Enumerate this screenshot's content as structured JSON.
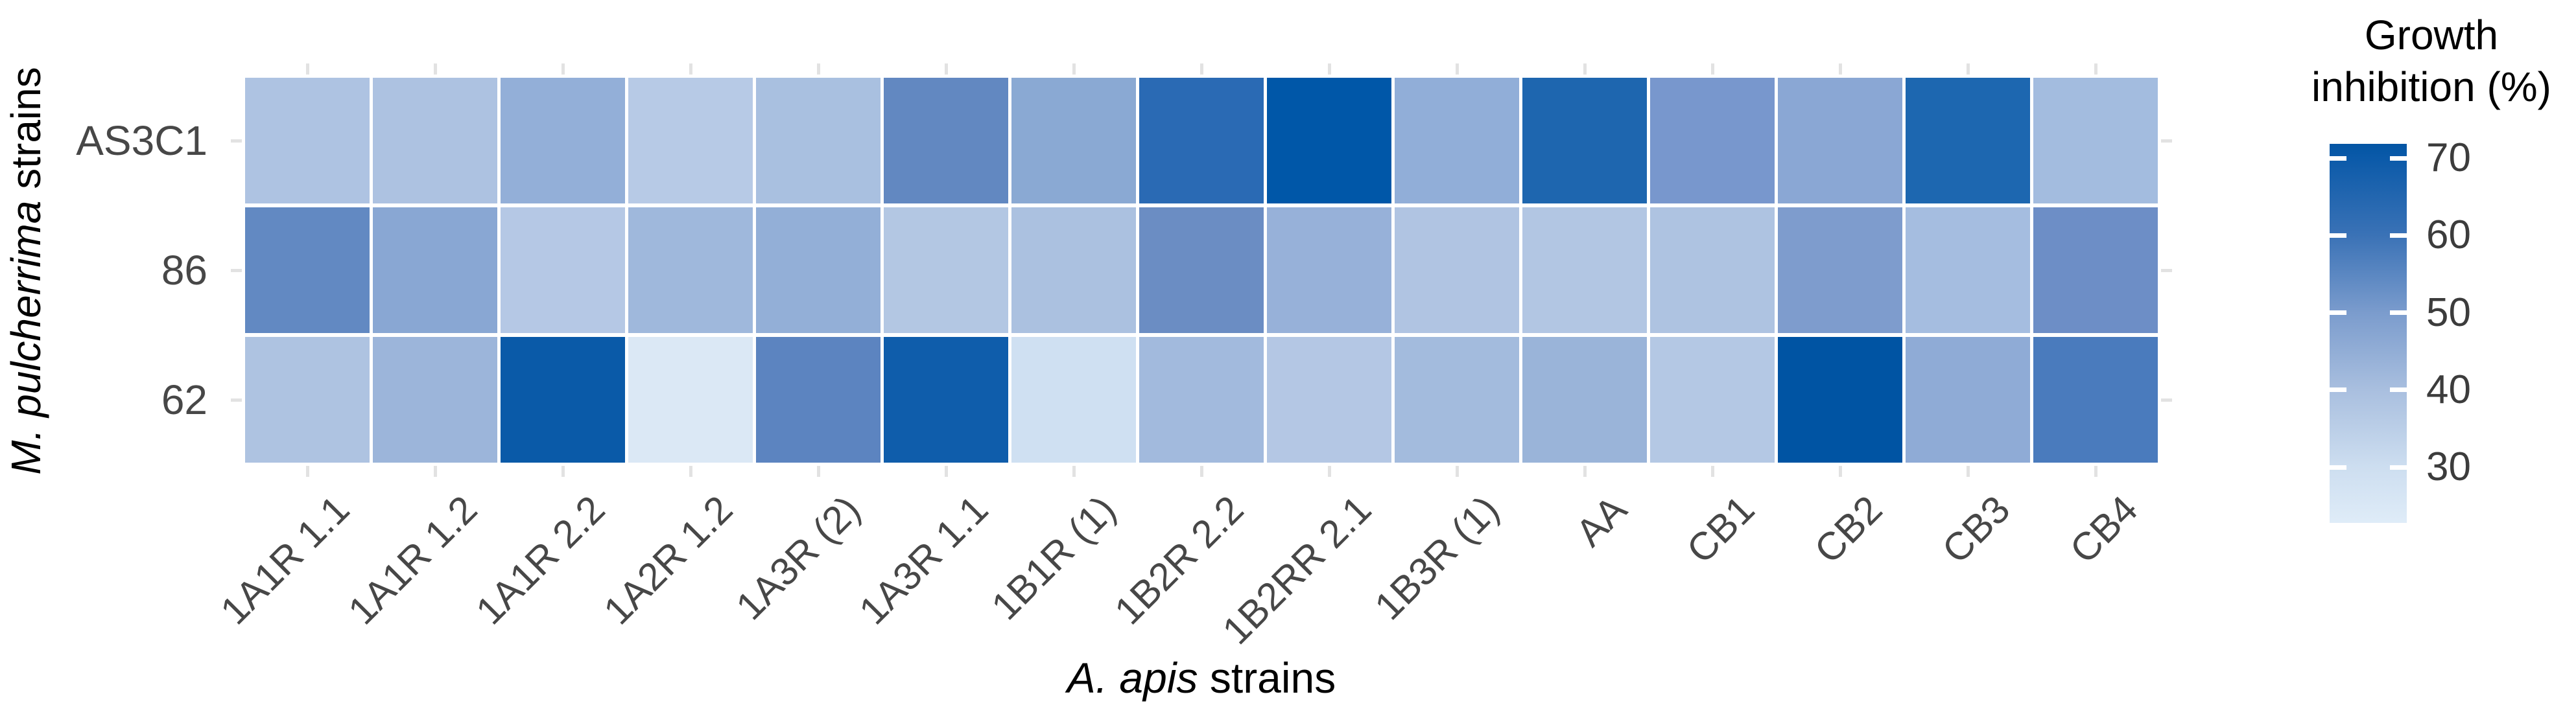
{
  "chart_data": {
    "type": "heatmap",
    "title": "",
    "xlabel": "A. apis strains",
    "xlabel_parts": {
      "italic": "A. apis",
      "regular": " strains"
    },
    "ylabel": "M. pulcherrima strains",
    "ylabel_parts": {
      "italic": "M. pulcherrima",
      "regular": " strains"
    },
    "x_categories": [
      "1A1R 1.1",
      "1A1R 1.2",
      "1A1R 2.2",
      "1A2R 1.2",
      "1A3R (2)",
      "1A3R 1.1",
      "1B1R (1)",
      "1B2R 2.2",
      "1B2RR 2.1",
      "1B3R (1)",
      "AA",
      "CB1",
      "CB2",
      "CB3",
      "CB4"
    ],
    "y_categories": [
      "AS3C1",
      "86",
      "62"
    ],
    "values": [
      [
        33,
        34,
        39,
        31,
        34,
        50,
        41,
        63,
        71,
        40,
        65,
        45,
        41,
        66,
        36
      ],
      [
        50,
        42,
        32,
        37,
        39,
        32,
        34,
        48,
        38,
        33,
        32,
        33,
        44,
        35,
        48
      ],
      [
        33,
        37,
        70,
        23,
        51,
        69,
        26,
        36,
        32,
        36,
        38,
        32,
        72,
        40,
        56
      ]
    ],
    "cell_colors": [
      [
        "#aec3e2",
        "#adc2e1",
        "#93afd8",
        "#b7cae6",
        "#a9c0e0",
        "#6288c1",
        "#8aa9d3",
        "#2a6ab4",
        "#0057a8",
        "#91aed8",
        "#1e66af",
        "#7897cd",
        "#8aa7d4",
        "#1d67b0",
        "#a3bcdf"
      ],
      [
        "#6289c2",
        "#89a7d3",
        "#b5c8e5",
        "#9fb8dc",
        "#93afd7",
        "#b3c7e3",
        "#abc1e0",
        "#6b8dc3",
        "#97b1d9",
        "#b0c4e2",
        "#b2c6e3",
        "#aec3e1",
        "#7e9ccd",
        "#a5bde0",
        "#6d8ec6"
      ],
      [
        "#aec3e1",
        "#9cb5da",
        "#0a5aa8",
        "#dbe8f5",
        "#5c84c0",
        "#0f5dab",
        "#cfe0f2",
        "#a2badd",
        "#b4c7e4",
        "#a3bbdd",
        "#9ab4d9",
        "#b4c8e4",
        "#0054a3",
        "#8fabd6",
        "#4a7bbd"
      ]
    ],
    "value_range": [
      23,
      72
    ],
    "grid": false,
    "legend": {
      "position": "right",
      "title": "Growth inhibition (%)",
      "title_lines": [
        "Growth",
        "inhibition (%)"
      ],
      "ticks": [
        70,
        60,
        50,
        40,
        30
      ],
      "gradient_stops": [
        {
          "pos": 0.0,
          "color": "#0355a4"
        },
        {
          "pos": 0.038,
          "color": "#0b5aa9"
        },
        {
          "pos": 0.241,
          "color": "#3a72b6"
        },
        {
          "pos": 0.446,
          "color": "#7b9ccd"
        },
        {
          "pos": 0.65,
          "color": "#a9bfdf"
        },
        {
          "pos": 0.853,
          "color": "#cddef0"
        },
        {
          "pos": 1.0,
          "color": "#dfecf8"
        }
      ]
    },
    "colors": {
      "background": "#ffffff",
      "cell_gap": "#ffffff",
      "axis_tick": "#e2e2e2",
      "axis_text": "#474747",
      "title_text": "#000000"
    }
  }
}
